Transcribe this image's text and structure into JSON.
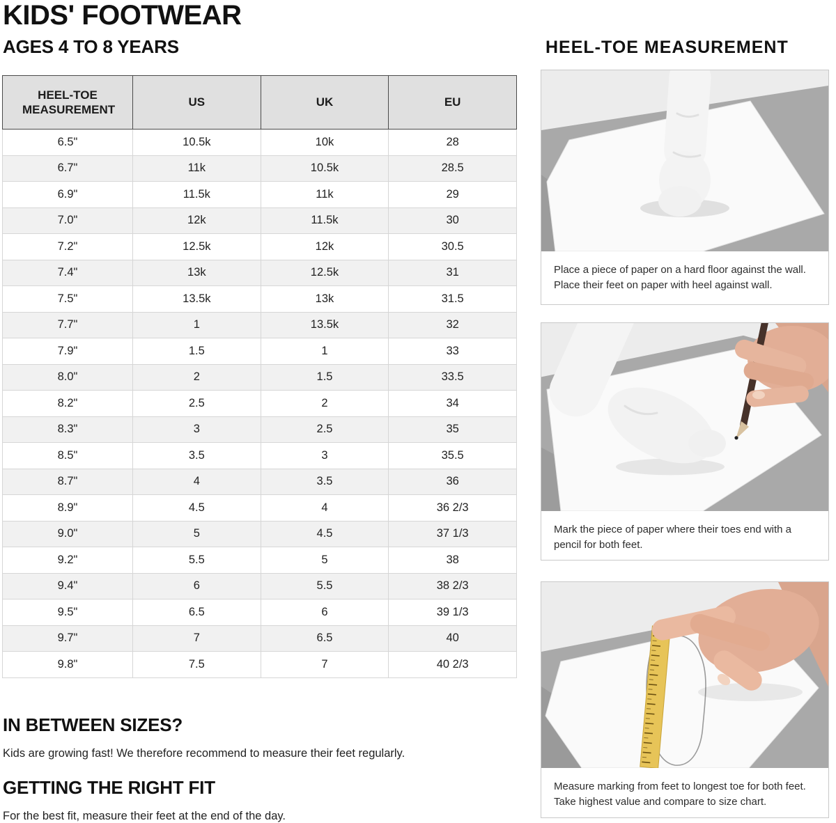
{
  "page": {
    "title": "KIDS' FOOTWEAR",
    "subtitle": "AGES 4 TO 8 YEARS"
  },
  "size_table": {
    "columns": [
      "HEEL-TOE MEASUREMENT",
      "US",
      "UK",
      "EU"
    ],
    "rows": [
      [
        "6.5\"",
        "10.5k",
        "10k",
        "28"
      ],
      [
        "6.7\"",
        "11k",
        "10.5k",
        "28.5"
      ],
      [
        "6.9\"",
        "11.5k",
        "11k",
        "29"
      ],
      [
        "7.0\"",
        "12k",
        "11.5k",
        "30"
      ],
      [
        "7.2\"",
        "12.5k",
        "12k",
        "30.5"
      ],
      [
        "7.4\"",
        "13k",
        "12.5k",
        "31"
      ],
      [
        "7.5\"",
        "13.5k",
        "13k",
        "31.5"
      ],
      [
        "7.7\"",
        "1",
        "13.5k",
        "32"
      ],
      [
        "7.9\"",
        "1.5",
        "1",
        "33"
      ],
      [
        "8.0\"",
        "2",
        "1.5",
        "33.5"
      ],
      [
        "8.2\"",
        "2.5",
        "2",
        "34"
      ],
      [
        "8.3\"",
        "3",
        "2.5",
        "35"
      ],
      [
        "8.5\"",
        "3.5",
        "3",
        "35.5"
      ],
      [
        "8.7\"",
        "4",
        "3.5",
        "36"
      ],
      [
        "8.9\"",
        "4.5",
        "4",
        "36 2/3"
      ],
      [
        "9.0\"",
        "5",
        "4.5",
        "37 1/3"
      ],
      [
        "9.2\"",
        "5.5",
        "5",
        "38"
      ],
      [
        "9.4\"",
        "6",
        "5.5",
        "38 2/3"
      ],
      [
        "9.5\"",
        "6.5",
        "6",
        "39 1/3"
      ],
      [
        "9.7\"",
        "7",
        "6.5",
        "40"
      ],
      [
        "9.8\"",
        "7.5",
        "7",
        "40 2/3"
      ]
    ]
  },
  "measurement_guide": {
    "heading": "HEEL-TOE MEASUREMENT",
    "steps": [
      {
        "photo": "foot-on-paper-against-wall-photo",
        "caption": "Place a piece of paper on a hard floor against the wall. Place their feet on paper with heel against wall."
      },
      {
        "photo": "marking-toes-with-pencil-photo",
        "caption": "Mark the piece of paper where their toes end with a pencil for both feet."
      },
      {
        "photo": "measuring-outline-with-ruler-photo",
        "caption": "Measure marking from feet to longest toe for both feet. Take highest value and compare to size chart."
      }
    ]
  },
  "notes": [
    {
      "heading": "IN BETWEEN SIZES?",
      "body": "Kids are growing fast! We therefore recommend to measure their feet regularly."
    },
    {
      "heading": "GETTING THE RIGHT FIT",
      "body": "For the best fit, measure their feet at the end of the day."
    }
  ],
  "colors": {
    "text": "#1a1a1a",
    "header_bg": "#e0e0e0",
    "row_alt_bg": "#f1f1f1",
    "border_dark": "#4a4a4a",
    "border_light": "#d6d6d6",
    "panel_border": "#c9c9c9",
    "photo_wall": "#ececec",
    "photo_floor": "#a9a9a9",
    "photo_paper": "#fafafa",
    "photo_sock": "#f4f4f4",
    "skin": "#e2ae96",
    "pencil": "#47322a",
    "ruler": "#e7c458"
  }
}
